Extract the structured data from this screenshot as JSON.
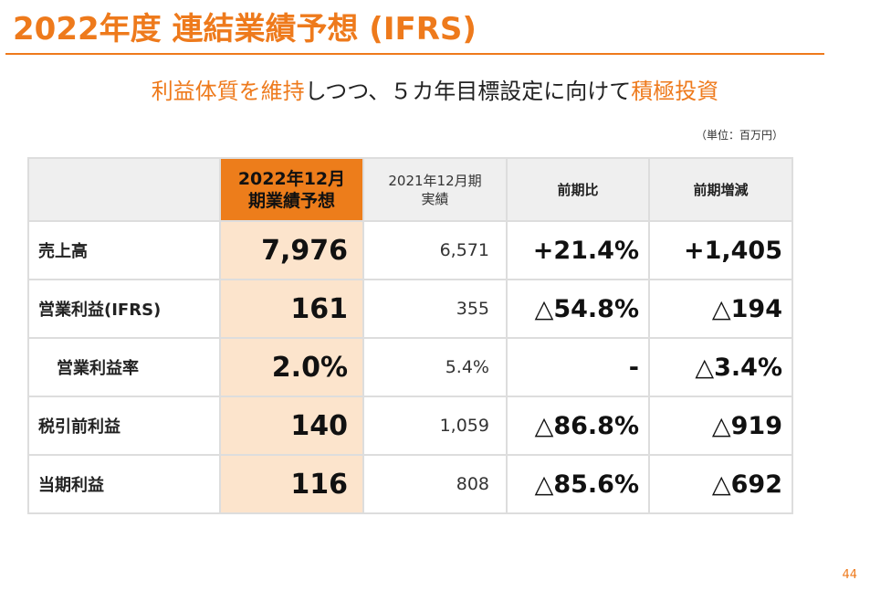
{
  "header": {
    "title": "2022年度 連結業績予想 (IFRS)",
    "subtitle": {
      "part1": "利益体質を維持",
      "part2": "しつつ、５カ年目標設定に向けて",
      "part3": "積極投資"
    },
    "unit": "（単位：百万円）"
  },
  "table": {
    "columns": {
      "forecast_line1": "2022年12月",
      "forecast_line2": "期業績予想",
      "actual_line1": "2021年12月期",
      "actual_line2": "実績",
      "yoy_ratio": "前期比",
      "yoy_change": "前期増減"
    },
    "rows": [
      {
        "label": "売上高",
        "forecast": "7,976",
        "actual": "6,571",
        "yoy_ratio": "+21.4%",
        "yoy_change": "+1,405"
      },
      {
        "label": "営業利益(IFRS)",
        "forecast": "161",
        "actual": "355",
        "yoy_ratio": "△54.8%",
        "yoy_change": "△194"
      },
      {
        "label": "営業利益率",
        "forecast": "2.0%",
        "actual": "5.4%",
        "yoy_ratio": "-",
        "yoy_change": "△3.4%"
      },
      {
        "label": "税引前利益",
        "forecast": "140",
        "actual": "1,059",
        "yoy_ratio": "△86.8%",
        "yoy_change": "△919"
      },
      {
        "label": "当期利益",
        "forecast": "116",
        "actual": "808",
        "yoy_ratio": "△85.6%",
        "yoy_change": "△692"
      }
    ]
  },
  "footer": {
    "page_number": "44"
  },
  "colors": {
    "accent": "#EE7A1C",
    "forecast_header": "#ED7D1B",
    "forecast_cell": "#FCE4CC",
    "header_bg": "#EFEFEF"
  }
}
